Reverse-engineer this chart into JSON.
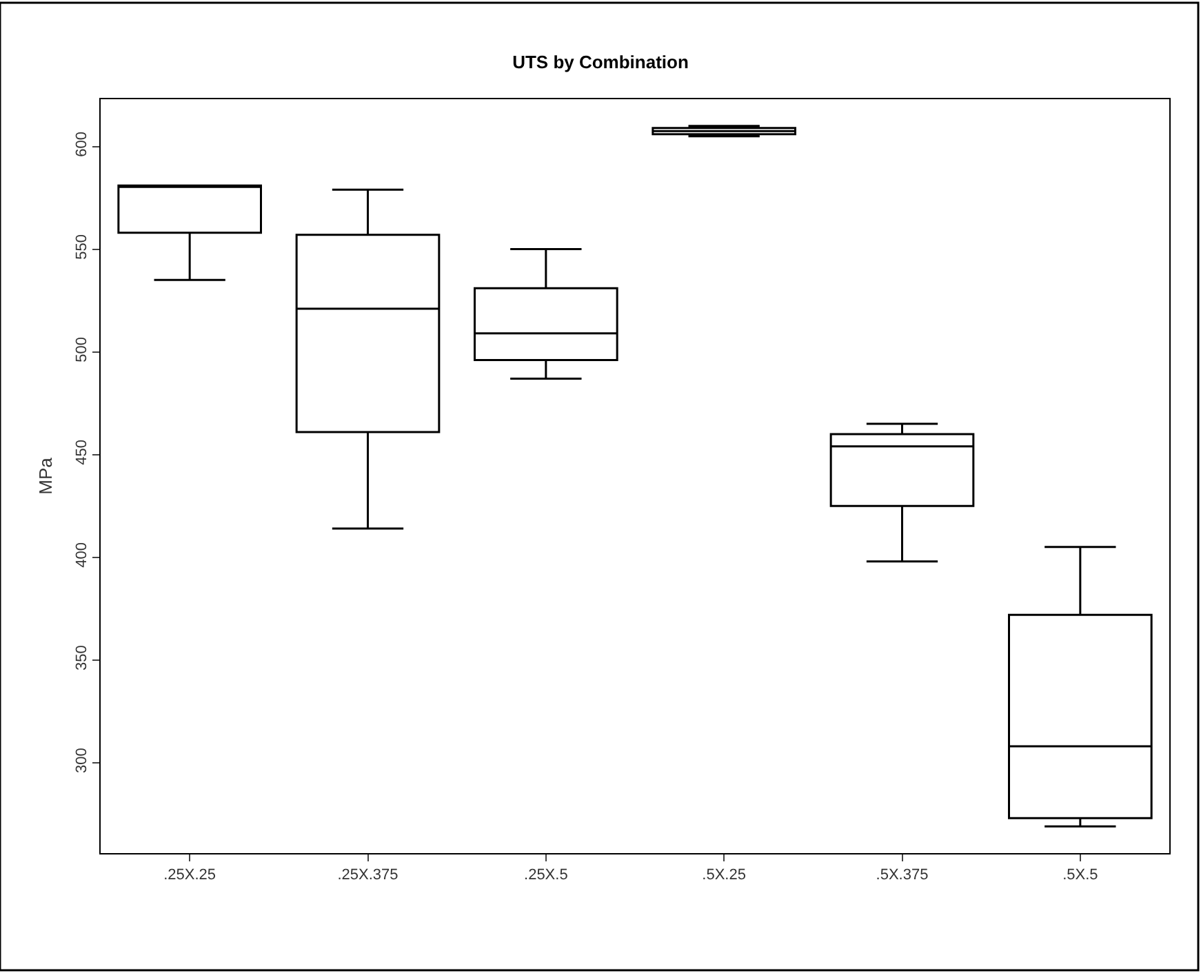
{
  "chart_data": {
    "type": "box",
    "title": "UTS by Combination",
    "ylabel": "MPa",
    "categories": [
      ".25X.25",
      ".25X.375",
      ".25X.5",
      ".5X.25",
      ".5X.375",
      ".5X.5"
    ],
    "boxes": [
      {
        "low": 535,
        "q1": 558,
        "median": 581,
        "q3": 581,
        "high": 581
      },
      {
        "low": 414,
        "q1": 461,
        "median": 521,
        "q3": 557,
        "high": 579
      },
      {
        "low": 487,
        "q1": 496,
        "median": 509,
        "q3": 531,
        "high": 550
      },
      {
        "low": 605,
        "q1": 606,
        "median": 607.5,
        "q3": 609,
        "high": 610
      },
      {
        "low": 398,
        "q1": 425,
        "median": 454,
        "q3": 460,
        "high": 465
      },
      {
        "low": 269,
        "q1": 273,
        "median": 308,
        "q3": 372,
        "high": 405
      }
    ],
    "color": "#000000",
    "ylim": [
      256,
      623
    ],
    "yticks": [
      300,
      350,
      400,
      450,
      500,
      550,
      600
    ]
  }
}
